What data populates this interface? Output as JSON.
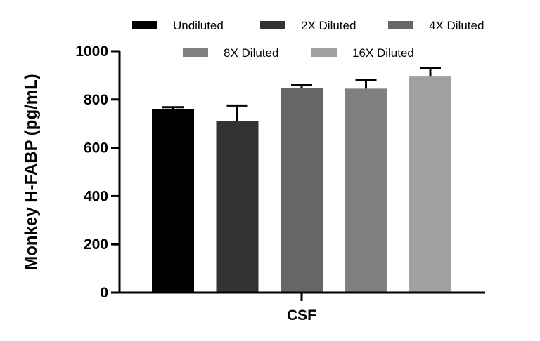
{
  "chart_data": {
    "type": "bar",
    "title": "",
    "xlabel": "",
    "ylabel": "Monkey H-FABP (pg/mL)",
    "categories": [
      "CSF"
    ],
    "ylim": [
      0,
      1000
    ],
    "yticks": [
      0,
      200,
      400,
      600,
      800,
      1000
    ],
    "grid": false,
    "legend_position": "top",
    "series": [
      {
        "name": "Undiluted",
        "values": [
          760
        ],
        "error": [
          8
        ],
        "color": "#000000"
      },
      {
        "name": "2X Diluted",
        "values": [
          710
        ],
        "error": [
          65
        ],
        "color": "#333333"
      },
      {
        "name": "4X Diluted",
        "values": [
          847
        ],
        "error": [
          12
        ],
        "color": "#666666"
      },
      {
        "name": "8X Diluted",
        "values": [
          845
        ],
        "error": [
          35
        ],
        "color": "#808080"
      },
      {
        "name": "16X Diluted",
        "values": [
          895
        ],
        "error": [
          35
        ],
        "color": "#a0a0a0"
      }
    ]
  }
}
